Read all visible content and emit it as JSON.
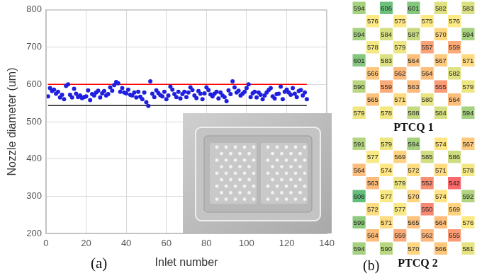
{
  "chart_data": {
    "type": "scatter",
    "x_label": "Inlet number",
    "y_label": "Nozzle diameter (um)",
    "xlim": [
      0,
      140
    ],
    "xticks": [
      0,
      20,
      40,
      60,
      80,
      100,
      120,
      140
    ],
    "ylim": [
      200,
      800
    ],
    "yticks": [
      200,
      300,
      400,
      500,
      600,
      700,
      800
    ],
    "grid": true,
    "series": [
      {
        "type": "scatter",
        "color": "#1f1fe0",
        "marker": "circle",
        "x": [
          1,
          2,
          3,
          4,
          5,
          6,
          7,
          8,
          9,
          10,
          11,
          12,
          13,
          14,
          15,
          16,
          17,
          18,
          19,
          20,
          21,
          22,
          23,
          24,
          25,
          26,
          27,
          28,
          29,
          30,
          31,
          32,
          33,
          34,
          35,
          36,
          37,
          38,
          39,
          40,
          41,
          42,
          43,
          44,
          45,
          46,
          47,
          48,
          49,
          50,
          51,
          52,
          53,
          54,
          55,
          56,
          57,
          58,
          59,
          60,
          61,
          62,
          63,
          64,
          65,
          66,
          67,
          68,
          69,
          70,
          71,
          72,
          73,
          74,
          75,
          76,
          77,
          78,
          79,
          80,
          81,
          82,
          83,
          84,
          85,
          86,
          87,
          88,
          89,
          90,
          91,
          92,
          93,
          94,
          95,
          96,
          97,
          98,
          99,
          100,
          101,
          102,
          103,
          104,
          105,
          106,
          107,
          108,
          109,
          110,
          111,
          112,
          113,
          114,
          115,
          116,
          117,
          118,
          119,
          120,
          121,
          122,
          123,
          124,
          125,
          126,
          127,
          128,
          129,
          130
        ],
        "values": [
          568,
          590,
          582,
          586,
          575,
          580,
          565,
          572,
          560,
          596,
          600,
          572,
          565,
          588,
          575,
          566,
          570,
          563,
          566,
          568,
          584,
          558,
          574,
          570,
          578,
          583,
          565,
          576,
          582,
          570,
          574,
          592,
          583,
          598,
          606,
          603,
          580,
          590,
          578,
          576,
          586,
          572,
          570,
          578,
          565,
          580,
          567,
          560,
          578,
          552,
          542,
          608,
          575,
          566,
          584,
          577,
          571,
          568,
          580,
          560,
          570,
          594,
          586,
          574,
          566,
          580,
          562,
          574,
          580,
          566,
          578,
          592,
          585,
          570,
          563,
          582,
          575,
          560,
          576,
          592,
          585,
          573,
          568,
          575,
          580,
          562,
          578,
          570,
          566,
          555,
          584,
          574,
          608,
          592,
          578,
          583,
          570,
          575,
          580,
          590,
          600,
          566,
          576,
          580,
          565,
          578,
          572,
          560,
          570,
          578,
          585,
          590,
          568,
          562,
          574,
          575,
          594,
          560,
          580,
          586,
          578,
          572,
          590,
          575,
          566,
          582,
          585,
          570,
          578,
          560
        ]
      },
      {
        "type": "line",
        "color": "#ff0000",
        "line_style": "solid",
        "x": [
          1,
          130
        ],
        "values": [
          600,
          600
        ]
      },
      {
        "type": "line",
        "color": "#222222",
        "line_style": "solid",
        "x": [
          1,
          130
        ],
        "values": [
          543,
          543
        ]
      }
    ]
  },
  "panel_labels": [
    "(a)",
    "(b)"
  ],
  "grids": [
    {
      "title": "PTCQ 1",
      "rows": [
        [
          594,
          606,
          601,
          582,
          583
        ],
        [
          576,
          575,
          575,
          576
        ],
        [
          594,
          584,
          587,
          570,
          594
        ],
        [
          578,
          579,
          557,
          559
        ],
        [
          601,
          583,
          564,
          567,
          571
        ],
        [
          566,
          562,
          564,
          582
        ],
        [
          590,
          559,
          563,
          555,
          579
        ],
        [
          565,
          571,
          580,
          564
        ],
        [
          579,
          578,
          588,
          584,
          594
        ]
      ]
    },
    {
      "title": "PTCQ 2",
      "rows": [
        [
          591,
          579,
          594,
          574,
          567
        ],
        [
          577,
          569,
          585,
          586
        ],
        [
          564,
          574,
          572,
          571,
          578
        ],
        [
          563,
          579,
          552,
          542
        ],
        [
          608,
          577,
          570,
          574,
          592
        ],
        [
          572,
          577,
          550,
          569
        ],
        [
          599,
          571,
          565,
          564,
          576
        ],
        [
          564,
          559,
          562,
          555
        ],
        [
          594,
          590,
          570,
          566,
          581
        ]
      ]
    }
  ]
}
